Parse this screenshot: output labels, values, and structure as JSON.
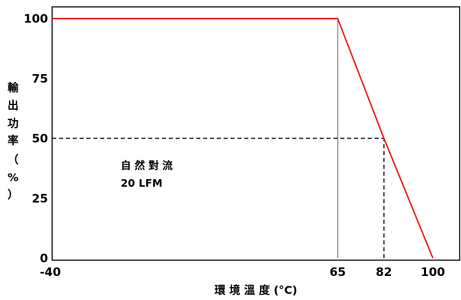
{
  "chart_data": {
    "type": "line",
    "title": "",
    "xlabel": "環 境 溫 度 (°C)",
    "ylabel": [
      "輸",
      "出",
      "功",
      "率",
      "（",
      "%",
      "）"
    ],
    "xlim": [
      -40,
      100
    ],
    "ylim": [
      0,
      100
    ],
    "x_ticks": [
      -40,
      65,
      82,
      100
    ],
    "y_ticks": [
      0,
      25,
      50,
      75,
      100
    ],
    "series": [
      {
        "color": "#e81818",
        "points": [
          [
            -40,
            100
          ],
          [
            65,
            100
          ],
          [
            82,
            50
          ],
          [
            100,
            0
          ]
        ]
      }
    ],
    "reference_lines": [
      {
        "type": "vertical",
        "x": 65,
        "y_from": 0,
        "y_to": 100,
        "style": "solid",
        "color": "#555555"
      },
      {
        "type": "horizontal",
        "y": 50,
        "x_from": -40,
        "x_to": 82,
        "style": "dashed",
        "color": "#000000"
      },
      {
        "type": "vertical",
        "x": 82,
        "y_from": 0,
        "y_to": 50,
        "style": "dashed",
        "color": "#000000"
      }
    ],
    "annotations": [
      "自 然 對 流",
      "20 LFM"
    ],
    "grid": false
  }
}
